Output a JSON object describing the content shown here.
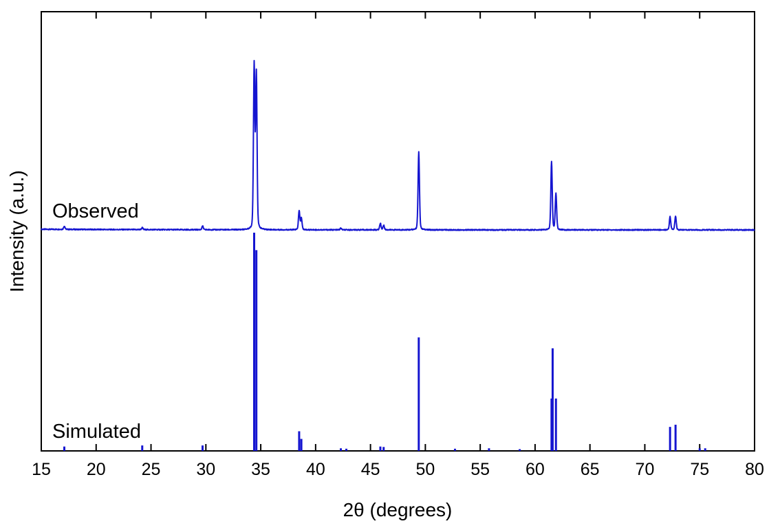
{
  "chart_data": {
    "type": "line",
    "xlabel": "2θ (degrees)",
    "ylabel": "Intensity (a.u.)",
    "xlim": [
      15,
      80
    ],
    "xticks": [
      "15",
      "20",
      "25",
      "30",
      "35",
      "40",
      "45",
      "50",
      "55",
      "60",
      "65",
      "70",
      "75",
      "80"
    ],
    "y_ticks_shown": false,
    "grid": false,
    "color": "#1515d0",
    "series": [
      {
        "name": "Observed",
        "kind": "profile",
        "baseline": 0.0,
        "peaks": [
          {
            "x": 17.1,
            "y": 0.02
          },
          {
            "x": 24.2,
            "y": 0.012
          },
          {
            "x": 29.7,
            "y": 0.022
          },
          {
            "x": 34.4,
            "y": 1.0
          },
          {
            "x": 34.6,
            "y": 0.945
          },
          {
            "x": 38.5,
            "y": 0.115
          },
          {
            "x": 38.7,
            "y": 0.07
          },
          {
            "x": 42.3,
            "y": 0.01
          },
          {
            "x": 45.9,
            "y": 0.04
          },
          {
            "x": 46.2,
            "y": 0.028
          },
          {
            "x": 49.4,
            "y": 0.476
          },
          {
            "x": 61.5,
            "y": 0.418
          },
          {
            "x": 61.9,
            "y": 0.22
          },
          {
            "x": 72.3,
            "y": 0.08
          },
          {
            "x": 72.8,
            "y": 0.085
          }
        ]
      },
      {
        "name": "Simulated",
        "kind": "sticks",
        "x": [
          17.1,
          24.2,
          29.7,
          34.4,
          34.6,
          38.5,
          38.7,
          42.3,
          42.8,
          45.9,
          46.2,
          49.4,
          52.7,
          55.8,
          58.6,
          61.5,
          61.6,
          61.9,
          72.3,
          72.8,
          75.0,
          75.5
        ],
        "y": [
          0.02,
          0.025,
          0.025,
          1.0,
          0.92,
          0.09,
          0.055,
          0.012,
          0.01,
          0.02,
          0.018,
          0.52,
          0.01,
          0.012,
          0.008,
          0.24,
          0.47,
          0.24,
          0.11,
          0.12,
          0.012,
          0.012
        ]
      }
    ]
  }
}
